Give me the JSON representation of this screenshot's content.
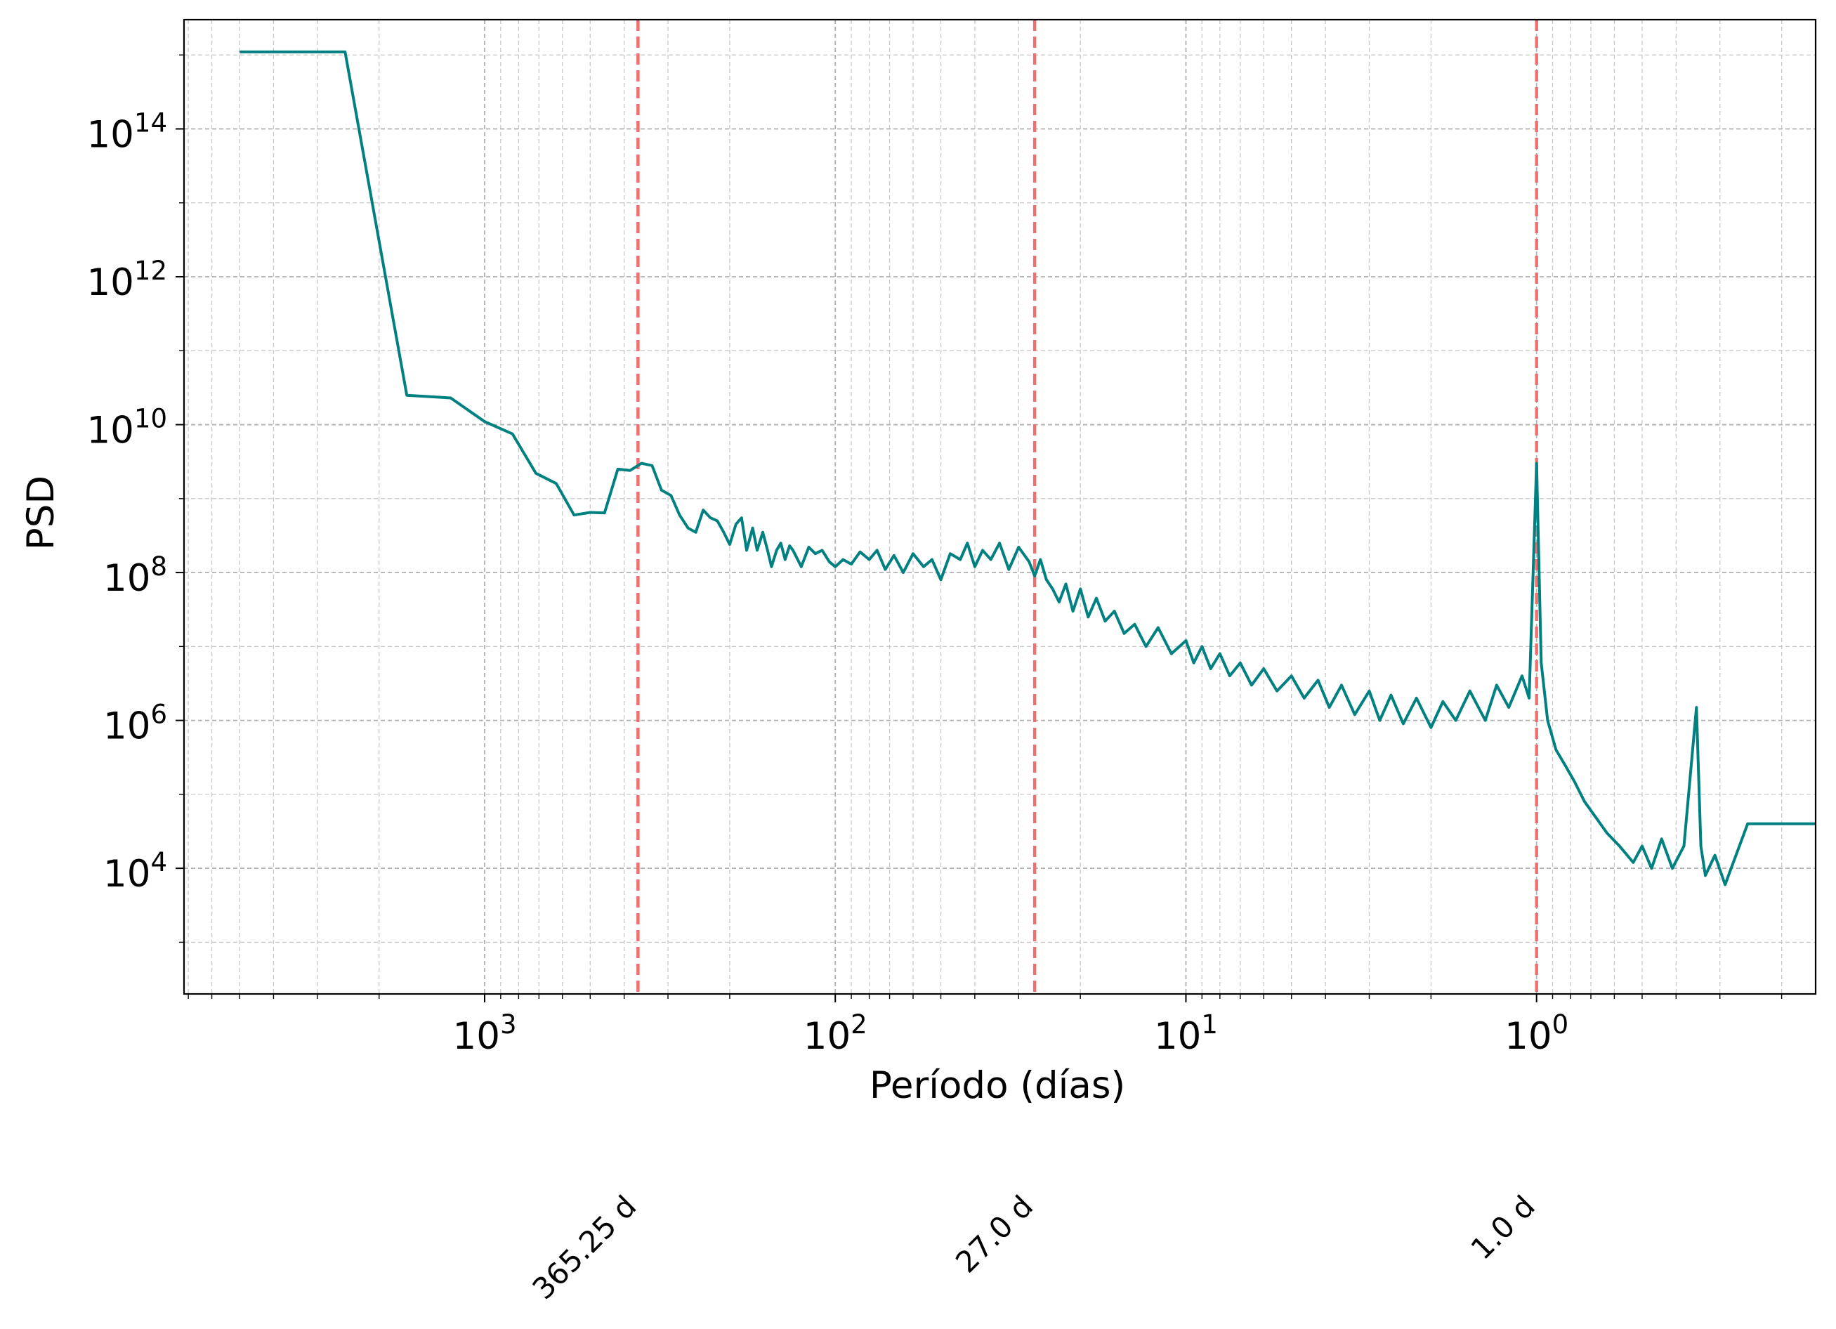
{
  "chart_data": {
    "type": "line",
    "title": "",
    "xlabel": "Período (días)",
    "ylabel": "PSD",
    "x_scale": "log",
    "y_scale": "log",
    "x_inverted": true,
    "xlim": [
      7200,
      0.16
    ],
    "ylim": [
      200,
      3000000000000000.0
    ],
    "grid": true,
    "x_ticks": [
      {
        "value": 1000,
        "base": "10",
        "exp": "3"
      },
      {
        "value": 100,
        "base": "10",
        "exp": "2"
      },
      {
        "value": 10,
        "base": "10",
        "exp": "1"
      },
      {
        "value": 1,
        "base": "10",
        "exp": "0"
      }
    ],
    "y_ticks": [
      {
        "value": 10000.0,
        "base": "10",
        "exp": "4"
      },
      {
        "value": 1000000.0,
        "base": "10",
        "exp": "6"
      },
      {
        "value": 100000000.0,
        "base": "10",
        "exp": "8"
      },
      {
        "value": 10000000000.0,
        "base": "10",
        "exp": "10"
      },
      {
        "value": 1000000000000.0,
        "base": "10",
        "exp": "12"
      },
      {
        "value": 100000000000000.0,
        "base": "10",
        "exp": "14"
      }
    ],
    "reference_lines": [
      {
        "value": 365.25,
        "label": "365.25 d",
        "color": "#f07070"
      },
      {
        "value": 27.0,
        "label": "27.0 d",
        "color": "#f07070"
      },
      {
        "value": 1.0,
        "label": "1.0 d",
        "color": "#f07070"
      }
    ],
    "series": [
      {
        "color": "#008080",
        "x": [
          5000,
          2500,
          1667,
          1250,
          1000,
          833,
          714,
          625,
          556,
          500,
          455,
          417,
          385,
          357,
          333,
          313,
          294,
          278,
          263,
          250,
          238,
          227,
          217,
          208,
          200,
          192,
          185,
          179,
          172,
          167,
          161,
          156,
          152,
          147,
          143,
          139,
          135,
          132,
          128,
          125,
          119,
          114,
          109,
          104,
          100,
          95,
          90,
          85,
          80,
          76,
          72,
          68,
          64,
          60,
          56,
          53,
          50,
          47,
          44,
          42,
          40,
          38,
          36,
          34,
          32,
          30,
          28,
          27,
          26,
          25,
          24,
          23,
          22,
          21,
          20,
          19,
          18,
          17,
          16,
          15,
          14,
          13,
          12,
          11,
          10,
          9.5,
          9,
          8.5,
          8,
          7.5,
          7,
          6.5,
          6,
          5.5,
          5,
          4.6,
          4.2,
          3.9,
          3.6,
          3.3,
          3.0,
          2.8,
          2.6,
          2.4,
          2.2,
          2.0,
          1.85,
          1.7,
          1.55,
          1.4,
          1.3,
          1.2,
          1.1,
          1.05,
          1.0,
          0.97,
          0.93,
          0.88,
          0.83,
          0.78,
          0.73,
          0.68,
          0.63,
          0.58,
          0.53,
          0.5,
          0.47,
          0.44,
          0.41,
          0.38,
          0.35,
          0.34,
          0.33,
          0.31,
          0.29,
          0.27,
          0.25,
          0.16
        ],
        "values": [
          1100000000000000.0,
          1100000000000000.0,
          25000000000.0,
          23000000000.0,
          11000000000.0,
          7500000000.0,
          2200000000.0,
          1600000000.0,
          600000000.0,
          650000000.0,
          640000000.0,
          2500000000.0,
          2400000000.0,
          3000000000.0,
          2800000000.0,
          1300000000.0,
          1100000000.0,
          600000000.0,
          400000000.0,
          350000000.0,
          700000000.0,
          550000000.0,
          500000000.0,
          350000000.0,
          240000000.0,
          450000000.0,
          550000000.0,
          200000000.0,
          400000000.0,
          200000000.0,
          350000000.0,
          200000000.0,
          120000000.0,
          200000000.0,
          250000000.0,
          150000000.0,
          230000000.0,
          200000000.0,
          150000000.0,
          120000000.0,
          220000000.0,
          180000000.0,
          200000000.0,
          140000000.0,
          120000000.0,
          150000000.0,
          130000000.0,
          190000000.0,
          150000000.0,
          200000000.0,
          110000000.0,
          170000000.0,
          100000000.0,
          180000000.0,
          120000000.0,
          150000000.0,
          80000000.0,
          180000000.0,
          150000000.0,
          250000000.0,
          120000000.0,
          200000000.0,
          150000000.0,
          250000000.0,
          110000000.0,
          220000000.0,
          140000000.0,
          90000000.0,
          150000000.0,
          80000000.0,
          60000000.0,
          40000000.0,
          70000000.0,
          30000000.0,
          60000000.0,
          25000000.0,
          45000000.0,
          22000000.0,
          30000000.0,
          15000000.0,
          20000000.0,
          10000000.0,
          18000000.0,
          8000000.0,
          12000000.0,
          6000000.0,
          10000000.0,
          5000000.0,
          8000000.0,
          4000000.0,
          6000000.0,
          3000000.0,
          5000000.0,
          2500000.0,
          4000000.0,
          2000000.0,
          3500000.0,
          1500000.0,
          3000000.0,
          1200000.0,
          2500000.0,
          1000000.0,
          2200000.0,
          900000.0,
          2000000.0,
          800000.0,
          1800000.0,
          1000000.0,
          2500000.0,
          1000000.0,
          3000000.0,
          1500000.0,
          4000000.0,
          2000000.0,
          3000000000.0,
          6000000.0,
          1000000.0,
          400000.0,
          250000.0,
          150000.0,
          80000.0,
          50000.0,
          30000.0,
          20000.0,
          12000.0,
          20000.0,
          10000.0,
          25000.0,
          10000.0,
          20000.0,
          1500000.0,
          20000.0,
          8000.0,
          15000.0,
          6000.0,
          15000.0,
          40000.0,
          40000.0
        ]
      }
    ]
  }
}
